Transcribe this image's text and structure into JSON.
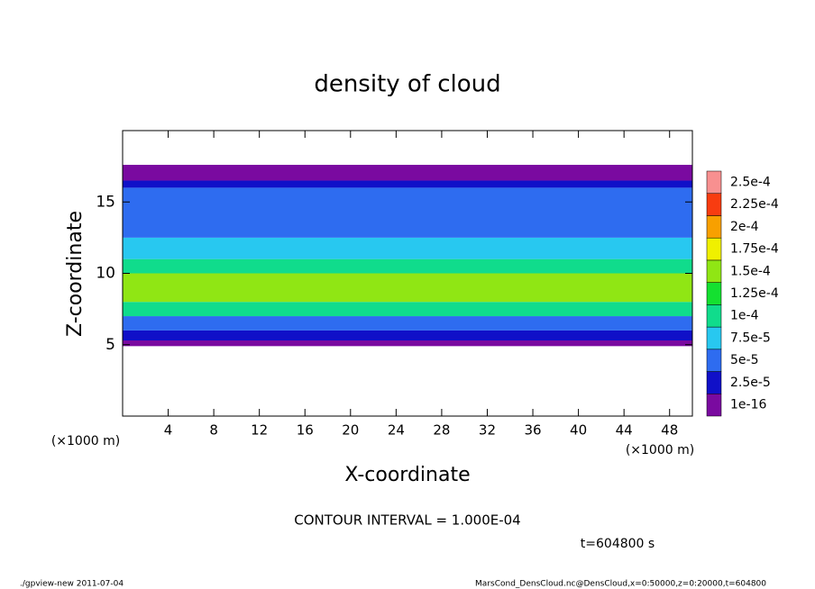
{
  "chart_data": {
    "type": "contour_profile",
    "title": "density of cloud",
    "x_label": "X-coordinate",
    "y_label": "Z-coordinate",
    "x_unit": "(×1000 m)",
    "contour_note": "CONTOUR INTERVAL = 1.000E-04",
    "time_note": "t=604800 s",
    "footer_left": "./gpview-new  2011-07-04",
    "footer_right": "MarsCond_DensCloud.nc@DensCloud,x=0:50000,z=0:20000,t=604800",
    "xlim": [
      0,
      50
    ],
    "xticks": [
      4,
      8,
      12,
      16,
      20,
      24,
      28,
      32,
      36,
      40,
      44,
      48
    ],
    "ylim": [
      0,
      20
    ],
    "yticks": [
      5,
      10,
      15
    ],
    "z_bins": [
      4.9,
      5.3,
      6,
      7,
      8,
      10,
      11,
      12.5,
      16,
      16.5,
      17.6
    ],
    "values": [
      5e-06,
      3e-05,
      7e-05,
      0.00012,
      0.00015,
      0.00011,
      8e-05,
      5e-05,
      3e-05,
      5e-06
    ],
    "levels": [
      {
        "value": 1e-16,
        "label": "1e-16",
        "color": "#7a0aa0"
      },
      {
        "value": 2.5e-05,
        "label": "2.5e-5",
        "color": "#1010c8"
      },
      {
        "value": 5e-05,
        "label": "5e-5",
        "color": "#2e6cf0"
      },
      {
        "value": 7.5e-05,
        "label": "7.5e-5",
        "color": "#28c8f0"
      },
      {
        "value": 0.0001,
        "label": "1e-4",
        "color": "#10dc8c"
      },
      {
        "value": 0.000125,
        "label": "1.25e-4",
        "color": "#14e030"
      },
      {
        "value": 0.00015,
        "label": "1.5e-4",
        "color": "#90e614"
      },
      {
        "value": 0.000175,
        "label": "1.75e-4",
        "color": "#f0f000"
      },
      {
        "value": 0.0002,
        "label": "2e-4",
        "color": "#f8a000"
      },
      {
        "value": 0.000225,
        "label": "2.25e-4",
        "color": "#f83c10"
      },
      {
        "value": 0.00025,
        "label": "2.5e-4",
        "color": "#f89090"
      }
    ]
  }
}
